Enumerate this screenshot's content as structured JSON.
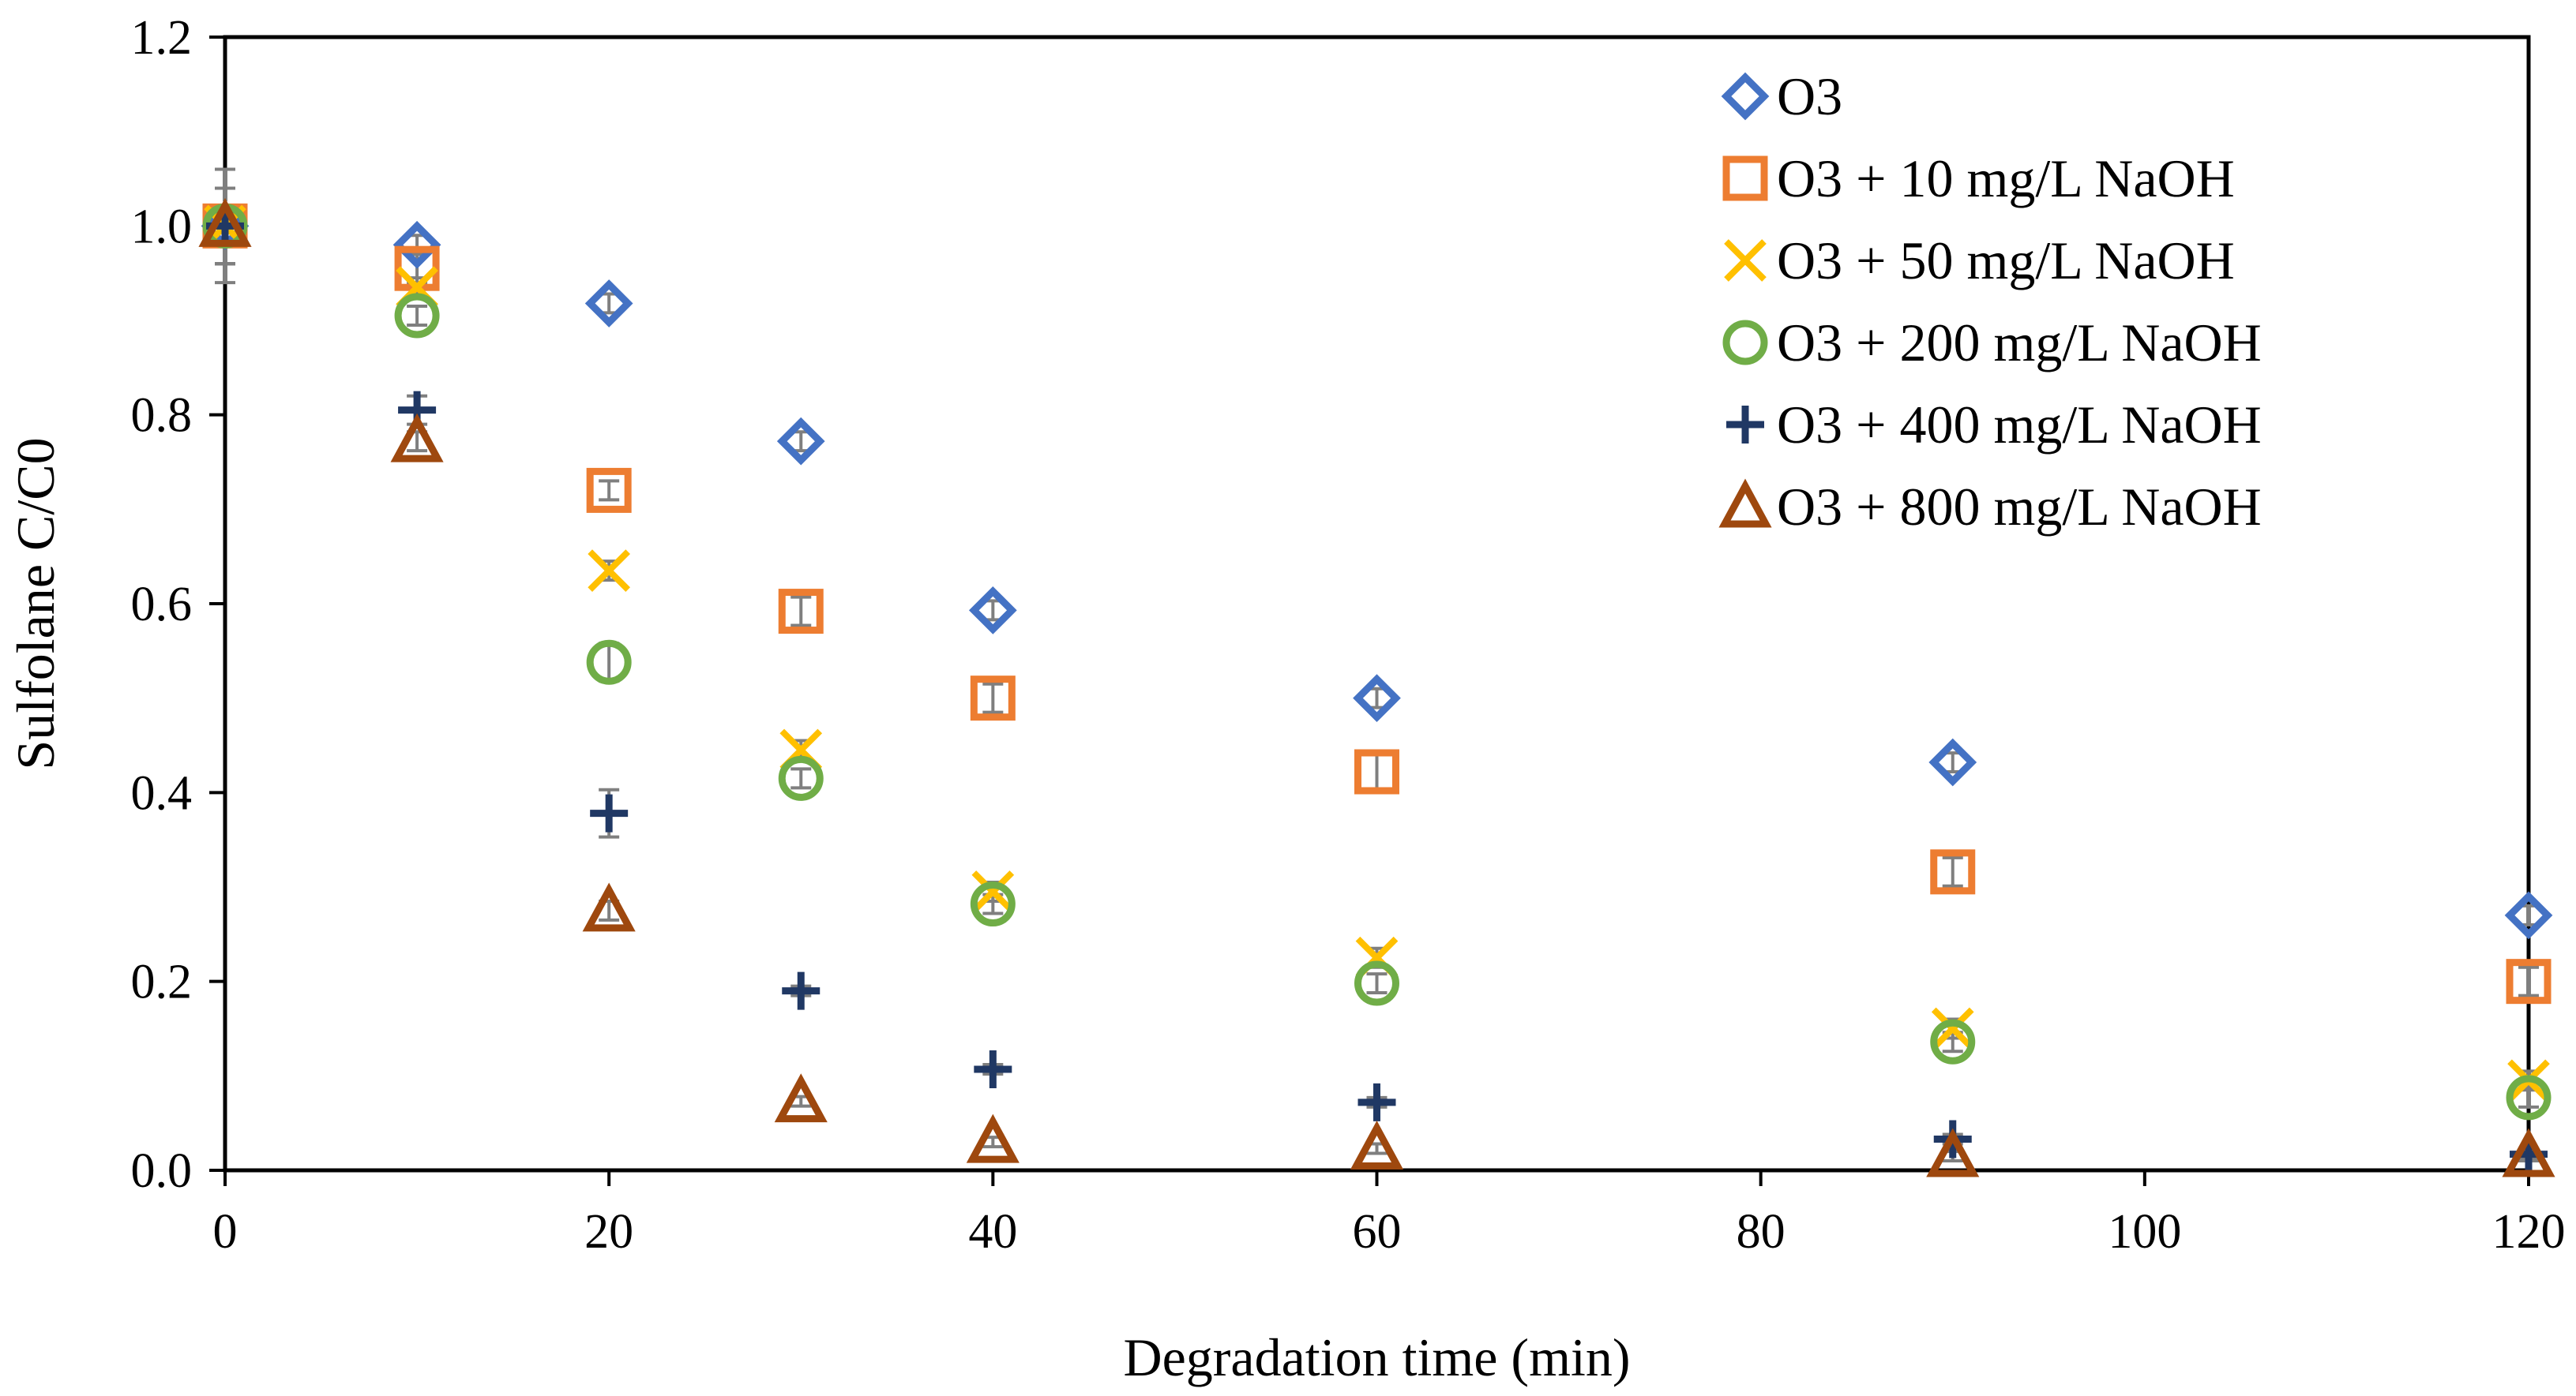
{
  "chart_data": {
    "type": "scatter",
    "title": "",
    "xlabel": "Degradation time (min)",
    "ylabel": "Sulfolane C/C0",
    "xlim": [
      0,
      120
    ],
    "ylim": [
      0,
      1.2
    ],
    "x_ticks": [
      "0",
      "20",
      "40",
      "60",
      "80",
      "100",
      "120"
    ],
    "y_ticks": [
      "0.0",
      "0.2",
      "0.4",
      "0.6",
      "0.8",
      "1.0",
      "1.2"
    ],
    "grid": false,
    "legend_position": "top-right",
    "x": [
      0,
      10,
      20,
      30,
      40,
      60,
      90,
      120
    ],
    "series": [
      {
        "name": "O3",
        "marker": "diamond",
        "color": "#4472C4",
        "values": [
          1.0,
          0.98,
          0.918,
          0.772,
          0.593,
          0.5,
          0.432,
          0.27
        ],
        "errors": [
          0.06,
          0.01,
          0.01,
          0.01,
          0.01,
          0.01,
          0.01,
          0.01
        ]
      },
      {
        "name": "O3 + 10 mg/L NaOH",
        "marker": "square",
        "color": "#ED7D31",
        "values": [
          1.0,
          0.955,
          0.72,
          0.592,
          0.5,
          0.422,
          0.316,
          0.2
        ],
        "errors": [
          0.04,
          0.015,
          0.01,
          0.015,
          0.015,
          0.02,
          0.015,
          0.015
        ]
      },
      {
        "name": "O3 + 50 mg/L NaOH",
        "marker": "x",
        "color": "#FFC000",
        "values": [
          1.0,
          0.935,
          0.635,
          0.445,
          0.295,
          0.225,
          0.15,
          0.095
        ],
        "errors": [
          0.04,
          0.01,
          0.01,
          0.01,
          0.01,
          0.01,
          0.01,
          0.01
        ]
      },
      {
        "name": "O3 + 200 mg/L NaOH",
        "marker": "circle",
        "color": "#70AD47",
        "values": [
          1.0,
          0.905,
          0.538,
          0.415,
          0.282,
          0.198,
          0.136,
          0.077
        ],
        "errors": [
          0.04,
          0.01,
          0.02,
          0.01,
          0.01,
          0.01,
          0.01,
          0.01
        ]
      },
      {
        "name": "O3 + 400 mg/L NaOH",
        "marker": "plus",
        "color": "#203864",
        "values": [
          1.0,
          0.805,
          0.378,
          0.19,
          0.107,
          0.072,
          0.033,
          0.017
        ],
        "errors": [
          0.04,
          0.015,
          0.025,
          0.005,
          0.005,
          0.005,
          0.005,
          0.005
        ]
      },
      {
        "name": "O3 + 800 mg/L NaOH",
        "marker": "triangle",
        "color": "#9E480E",
        "values": [
          1.0,
          0.772,
          0.275,
          0.073,
          0.03,
          0.023,
          0.015,
          0.015
        ],
        "errors": [
          0.04,
          0.01,
          0.01,
          0.005,
          0.005,
          0.005,
          0.005,
          0.005
        ]
      }
    ]
  }
}
